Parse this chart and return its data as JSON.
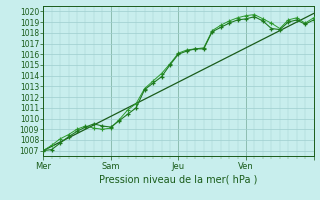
{
  "title": "Pression niveau de la mer( hPa )",
  "ylabel_vals": [
    1007,
    1008,
    1009,
    1010,
    1011,
    1012,
    1013,
    1014,
    1015,
    1016,
    1017,
    1018,
    1019,
    1020
  ],
  "ylim": [
    1006.5,
    1020.5
  ],
  "xlim": [
    0,
    96
  ],
  "day_ticks": [
    0,
    24,
    48,
    72,
    96
  ],
  "day_labels": [
    "Mer",
    "Sam",
    "Jeu",
    "Ven",
    ""
  ],
  "minor_xticks": [
    0,
    3,
    6,
    9,
    12,
    15,
    18,
    21,
    24,
    27,
    30,
    33,
    36,
    39,
    42,
    45,
    48,
    51,
    54,
    57,
    60,
    63,
    66,
    69,
    72,
    75,
    78,
    81,
    84,
    87,
    90,
    93,
    96
  ],
  "bg_color": "#c8eeed",
  "grid_color": "#9ecece",
  "line_dark": "#1a5c1a",
  "line_mid": "#1e7a1e",
  "line_light": "#2d9a2d",
  "series1_x": [
    0,
    3,
    6,
    9,
    12,
    15,
    18,
    21,
    24,
    27,
    30,
    33,
    36,
    39,
    42,
    45,
    48,
    51,
    54,
    57,
    60,
    63,
    66,
    69,
    72,
    75,
    78,
    81,
    84,
    87,
    90,
    93,
    96
  ],
  "series1_y": [
    1007.0,
    1007.1,
    1007.7,
    1008.3,
    1008.8,
    1009.2,
    1009.5,
    1009.3,
    1009.2,
    1009.8,
    1010.4,
    1011.0,
    1012.7,
    1013.3,
    1013.9,
    1015.0,
    1016.0,
    1016.3,
    1016.5,
    1016.5,
    1018.1,
    1018.5,
    1018.9,
    1019.2,
    1019.3,
    1019.5,
    1019.1,
    1018.4,
    1018.3,
    1019.0,
    1019.2,
    1018.8,
    1019.2
  ],
  "series2_x": [
    0,
    3,
    6,
    9,
    12,
    15,
    18,
    21,
    24,
    27,
    30,
    33,
    36,
    39,
    42,
    45,
    48,
    51,
    54,
    57,
    60,
    63,
    66,
    69,
    72,
    75,
    78,
    81,
    84,
    87,
    90,
    93,
    96
  ],
  "series2_y": [
    1007.0,
    1007.5,
    1008.1,
    1008.5,
    1009.0,
    1009.3,
    1009.1,
    1009.0,
    1009.1,
    1009.9,
    1010.8,
    1011.4,
    1012.8,
    1013.5,
    1014.2,
    1015.1,
    1016.1,
    1016.4,
    1016.5,
    1016.6,
    1018.2,
    1018.7,
    1019.1,
    1019.4,
    1019.6,
    1019.7,
    1019.3,
    1018.9,
    1018.4,
    1019.2,
    1019.4,
    1018.9,
    1019.4
  ],
  "trend_x": [
    0,
    96
  ],
  "trend_y": [
    1007.0,
    1019.8
  ]
}
